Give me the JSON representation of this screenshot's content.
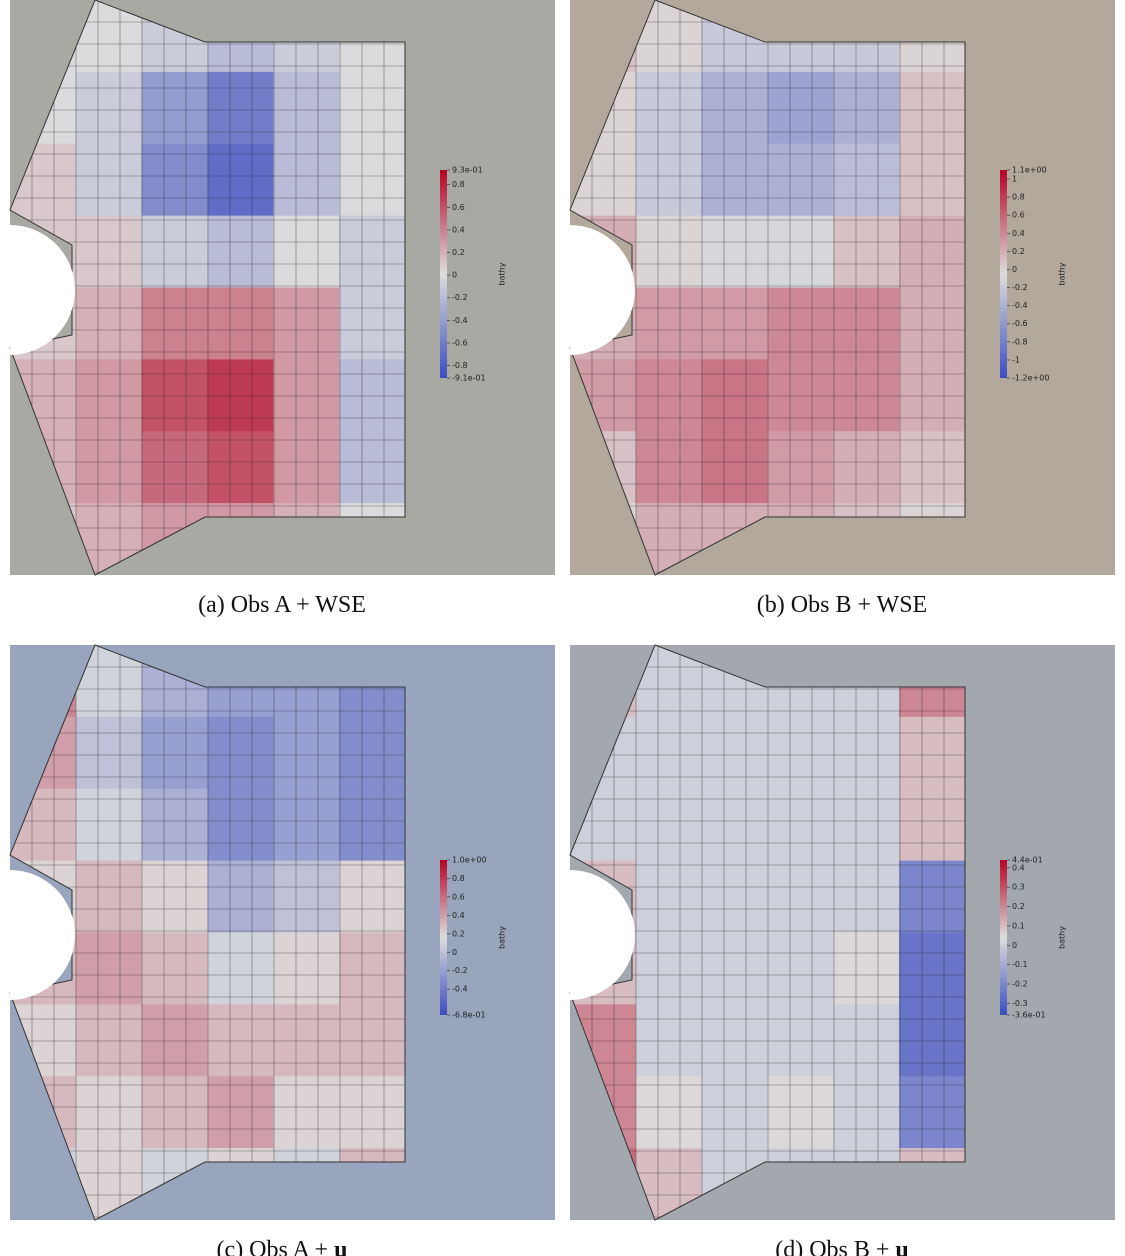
{
  "panels": [
    {
      "caption": "(a) Obs A + WSE",
      "colorbar_label": "bathy",
      "clim": [
        -0.91,
        0.93
      ],
      "ticks": [
        {
          "value": 0.93,
          "label": "9.3e-01"
        },
        0.8,
        0.6,
        0.4,
        0.2,
        0,
        -0.2,
        -0.4,
        -0.6,
        -0.8,
        {
          "value": -0.91,
          "label": "-9.1e-01"
        }
      ],
      "background": "#a9a9a3",
      "field": [
        [
          0,
          0,
          -0.1,
          -0.2,
          -0.1,
          0
        ],
        [
          0,
          -0.1,
          -0.4,
          -0.6,
          -0.2,
          0
        ],
        [
          0.1,
          -0.1,
          -0.5,
          -0.7,
          -0.2,
          0
        ],
        [
          0.1,
          0.1,
          -0.1,
          -0.2,
          0,
          -0.1
        ],
        [
          0.1,
          0.2,
          0.4,
          0.4,
          0.3,
          -0.1
        ],
        [
          0.2,
          0.3,
          0.6,
          0.7,
          0.3,
          -0.2
        ],
        [
          0.2,
          0.3,
          0.5,
          0.6,
          0.3,
          -0.2
        ],
        [
          0.1,
          0.2,
          0.3,
          0.3,
          0.2,
          0
        ]
      ]
    },
    {
      "caption": "(b) Obs B + WSE",
      "colorbar_label": "bathy",
      "clim": [
        -1.2,
        1.1
      ],
      "ticks": [
        {
          "value": 1.1,
          "label": "1.1e+00"
        },
        1,
        0.8,
        0.6,
        0.4,
        0.2,
        0,
        -0.2,
        -0.4,
        -0.6,
        -0.8,
        -1,
        {
          "value": -1.2,
          "label": "-1.2e+00"
        }
      ],
      "background": "#b2a89c",
      "field": [
        [
          0.1,
          0,
          -0.2,
          -0.2,
          -0.2,
          0
        ],
        [
          0,
          -0.2,
          -0.4,
          -0.5,
          -0.4,
          0.1
        ],
        [
          0,
          -0.2,
          -0.4,
          -0.4,
          -0.3,
          0.1
        ],
        [
          0.2,
          0,
          -0.1,
          -0.1,
          0.1,
          0.2
        ],
        [
          0.2,
          0.3,
          0.3,
          0.4,
          0.4,
          0.2
        ],
        [
          0.3,
          0.4,
          0.5,
          0.4,
          0.4,
          0.2
        ],
        [
          0.1,
          0.4,
          0.5,
          0.3,
          0.2,
          0.1
        ],
        [
          0,
          0.2,
          0.2,
          0.2,
          0.1,
          0
        ]
      ]
    },
    {
      "caption": "(c) Obs A +",
      "caption_bold": "u",
      "colorbar_label": "bathy",
      "clim": [
        -0.68,
        1.0
      ],
      "ticks": [
        {
          "value": 1.0,
          "label": "1.0e+00"
        },
        0.8,
        0.6,
        0.4,
        0.2,
        0,
        -0.2,
        -0.4,
        {
          "value": -0.68,
          "label": "-6.8e-01"
        }
      ],
      "background": "#98a5bd",
      "field": [
        [
          0.5,
          0.1,
          -0.1,
          -0.2,
          -0.2,
          -0.3
        ],
        [
          0.4,
          0,
          -0.2,
          -0.3,
          -0.2,
          -0.3
        ],
        [
          0.3,
          0.1,
          -0.1,
          -0.3,
          -0.2,
          -0.3
        ],
        [
          0.2,
          0.3,
          0.2,
          -0.1,
          0,
          0.2
        ],
        [
          0.3,
          0.4,
          0.3,
          0.1,
          0.2,
          0.3
        ],
        [
          0.2,
          0.3,
          0.4,
          0.3,
          0.3,
          0.3
        ],
        [
          0.3,
          0.2,
          0.3,
          0.4,
          0.2,
          0.2
        ],
        [
          0.1,
          0.2,
          0.1,
          0.2,
          0.1,
          0.3
        ]
      ]
    },
    {
      "caption": "(d) Obs B +",
      "caption_bold": "u",
      "colorbar_label": "bathy",
      "clim": [
        -0.36,
        0.44
      ],
      "ticks": [
        {
          "value": 0.44,
          "label": "4.4e-01"
        },
        0.4,
        0.3,
        0.2,
        0.1,
        0,
        -0.1,
        -0.2,
        -0.3,
        {
          "value": -0.36,
          "label": "-3.6e-01"
        }
      ],
      "background": "#a3a8af",
      "field": [
        [
          0.1,
          0,
          0,
          0,
          0,
          0.2
        ],
        [
          0,
          0,
          0,
          0,
          0,
          0.1
        ],
        [
          0,
          0,
          0,
          0,
          0,
          0.1
        ],
        [
          0.1,
          0,
          0,
          0,
          0,
          -0.2
        ],
        [
          0.1,
          0,
          0,
          0,
          0.05,
          -0.25
        ],
        [
          0.2,
          0,
          0,
          0,
          0,
          -0.25
        ],
        [
          0.2,
          0.05,
          0,
          0.05,
          0,
          -0.2
        ],
        [
          0.25,
          0.1,
          0,
          0,
          0,
          0.1
        ]
      ]
    }
  ]
}
